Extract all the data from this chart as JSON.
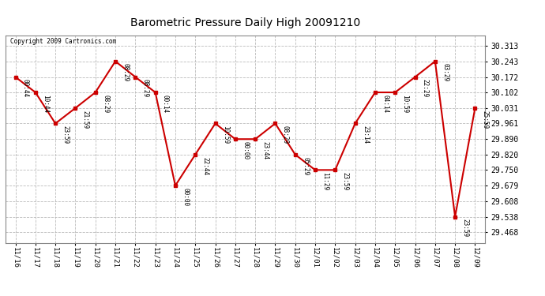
{
  "title": "Barometric Pressure Daily High 20091210",
  "copyright": "Copyright 2009 Cartronics.com",
  "x_labels": [
    "11/16",
    "11/17",
    "11/18",
    "11/19",
    "11/20",
    "11/21",
    "11/22",
    "11/23",
    "11/24",
    "11/25",
    "11/26",
    "11/27",
    "11/28",
    "11/29",
    "11/30",
    "12/01",
    "12/02",
    "12/03",
    "12/04",
    "12/05",
    "12/06",
    "12/07",
    "12/08",
    "12/09"
  ],
  "y_values": [
    30.172,
    30.102,
    29.961,
    30.031,
    30.102,
    30.243,
    30.172,
    30.102,
    29.679,
    29.82,
    29.961,
    29.89,
    29.89,
    29.961,
    29.82,
    29.75,
    29.75,
    29.961,
    30.102,
    30.102,
    30.172,
    30.243,
    29.538,
    30.031
  ],
  "point_labels": [
    "00:44",
    "10:44",
    "23:59",
    "21:59",
    "08:29",
    "08:29",
    "08:29",
    "00:14",
    "00:00",
    "22:44",
    "10:59",
    "00:00",
    "23:44",
    "08:29",
    "05:29",
    "11:29",
    "23:59",
    "23:14",
    "04:14",
    "10:59",
    "22:29",
    "03:29",
    "23:59",
    "25:59"
  ],
  "line_color": "#cc0000",
  "marker_color": "#cc0000",
  "bg_color": "#ffffff",
  "grid_color": "#bbbbbb",
  "y_ticks": [
    29.468,
    29.538,
    29.608,
    29.679,
    29.75,
    29.82,
    29.89,
    29.961,
    30.031,
    30.102,
    30.172,
    30.243,
    30.313
  ],
  "ylim_min": 29.42,
  "ylim_max": 30.36
}
